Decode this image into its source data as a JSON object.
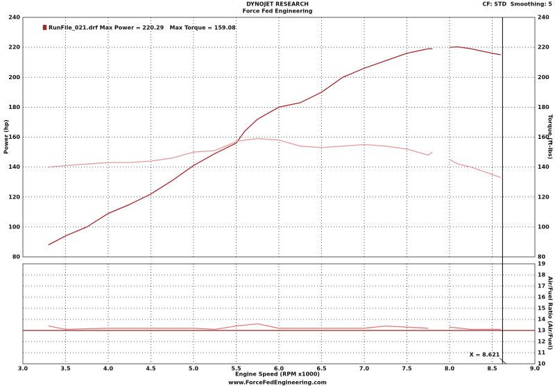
{
  "chart_data": [
    {
      "type": "line",
      "title": "DYNOJET RESEARCH",
      "subtitle": "Force Fed Engineering",
      "annotation": "CF: STD  Smoothing: 5",
      "legend": "RunFile_021.drf Max Power = 220.29   Max Torque = 159.08",
      "ylabel": "Power (hp)",
      "y2label": "Torque (ft-lbs)",
      "x": [
        3.3,
        3.5,
        3.75,
        4.0,
        4.25,
        4.5,
        4.75,
        5.0,
        5.25,
        5.5,
        5.6,
        5.75,
        6.0,
        6.25,
        6.5,
        6.75,
        7.0,
        7.25,
        7.5,
        7.75,
        7.8,
        7.9,
        8.0,
        8.1,
        8.25,
        8.5,
        8.6
      ],
      "series": [
        {
          "color": "#a3262b",
          "axis": "y",
          "values": [
            88,
            94,
            100,
            109,
            115,
            122,
            131,
            141,
            149,
            156,
            164,
            172,
            180,
            183,
            190,
            200,
            206,
            211,
            216,
            219,
            219,
            null,
            220,
            220.3,
            219,
            216,
            215
          ]
        },
        {
          "color": "#e59a9c",
          "axis": "y2",
          "values": [
            140,
            141,
            142,
            143,
            143,
            144,
            146,
            150,
            151,
            157,
            158,
            159,
            158,
            154,
            153,
            154,
            155,
            154,
            152,
            148,
            150,
            null,
            145,
            142,
            140,
            135,
            133
          ]
        }
      ],
      "xlim": [
        3,
        9
      ],
      "xticks": [
        {
          "value": 3,
          "label": "3.0"
        },
        3.5,
        {
          "value": 4,
          "label": "4.0"
        },
        4.5,
        {
          "value": 5,
          "label": "5.0"
        },
        5.5,
        {
          "value": 6,
          "label": "6.0"
        },
        6.5,
        {
          "value": 7,
          "label": "7.0"
        },
        7.5,
        {
          "value": 8,
          "label": "8.0"
        },
        8.5,
        {
          "value": 9,
          "label": "9.0"
        }
      ],
      "ylim": [
        80,
        240
      ],
      "yticks": [
        80,
        100,
        120,
        140,
        160,
        180,
        200,
        220,
        240
      ],
      "y2lim": [
        80,
        240
      ],
      "y2ticks": [
        80,
        100,
        120,
        140,
        160,
        180,
        200,
        220,
        240
      ],
      "grid": true
    },
    {
      "type": "line",
      "xlabel": "Engine Speed (RPM x1000)",
      "footer": "www.ForceFedEngineering.com",
      "y2label": "Air/Fuel Ratio (Air/Fuel)",
      "cursor": {
        "value": 8.621,
        "label": "X = 8.621"
      },
      "reference_line": 13,
      "x": [
        3.3,
        3.5,
        4.0,
        4.5,
        5.0,
        5.25,
        5.5,
        5.75,
        6.0,
        6.5,
        7.0,
        7.25,
        7.5,
        7.75,
        7.9,
        8.0,
        8.25,
        8.6
      ],
      "series": [
        {
          "color": "#dc7c7f",
          "axis": "y2",
          "values": [
            13.4,
            13.1,
            13.2,
            13.2,
            13.2,
            13.1,
            13.4,
            13.6,
            13.2,
            13.2,
            13.2,
            13.4,
            13.3,
            13.2,
            null,
            13.3,
            13.1,
            13.1
          ]
        }
      ],
      "xlim": [
        3,
        9
      ],
      "xticks": [
        {
          "value": 3,
          "label": "3.0"
        },
        3.5,
        {
          "value": 4,
          "label": "4.0"
        },
        4.5,
        {
          "value": 5,
          "label": "5.0"
        },
        5.5,
        {
          "value": 6,
          "label": "6.0"
        },
        6.5,
        {
          "value": 7,
          "label": "7.0"
        },
        7.5,
        {
          "value": 8,
          "label": "8.0"
        },
        8.5,
        {
          "value": 9,
          "label": "9.0"
        }
      ],
      "y2lim": [
        10,
        19
      ],
      "y2ticks": [
        10,
        11,
        12,
        13,
        14,
        15,
        16,
        17,
        18,
        19
      ],
      "grid": true
    }
  ]
}
